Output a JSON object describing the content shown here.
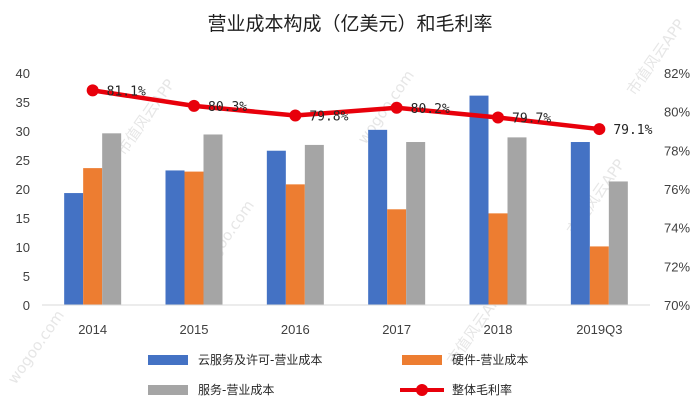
{
  "chart_data": {
    "type": "bar",
    "title": "营业成本构成（亿美元）和毛利率",
    "categories": [
      "2014",
      "2015",
      "2016",
      "2017",
      "2018",
      "2019Q3"
    ],
    "series": [
      {
        "name": "云服务及许可-营业成本",
        "color": "#4472c4",
        "axis": "left",
        "values": [
          19.3,
          23.2,
          26.6,
          30.2,
          36.1,
          28.1
        ]
      },
      {
        "name": "硬件-营业成本",
        "color": "#ed7d31",
        "axis": "left",
        "values": [
          23.6,
          23.0,
          20.8,
          16.5,
          15.8,
          10.1
        ]
      },
      {
        "name": "服务-营业成本",
        "color": "#a5a5a5",
        "axis": "left",
        "values": [
          29.6,
          29.4,
          27.6,
          28.1,
          28.9,
          21.3
        ]
      },
      {
        "name": "整体毛利率",
        "color": "#e8000b",
        "type": "line",
        "axis": "right",
        "unit": "%",
        "values": [
          81.1,
          80.3,
          79.8,
          80.2,
          79.7,
          79.1
        ],
        "labels": [
          "81.1%",
          "80.3%",
          "79.8%",
          "80.2%",
          "79.7%",
          "79.1%"
        ]
      }
    ],
    "ylim": [
      0,
      40
    ],
    "yticks": [
      "0",
      "5",
      "10",
      "15",
      "20",
      "25",
      "30",
      "35",
      "40"
    ],
    "y2lim": [
      70,
      82
    ],
    "y2ticks": [
      "70%",
      "72%",
      "74%",
      "76%",
      "78%",
      "80%",
      "82%"
    ],
    "grid": false,
    "legend_position": "bottom"
  },
  "watermark": {
    "texts": [
      "市值风云APP",
      "wogoo.com",
      "市值风云APP",
      "wogoo.com"
    ]
  }
}
